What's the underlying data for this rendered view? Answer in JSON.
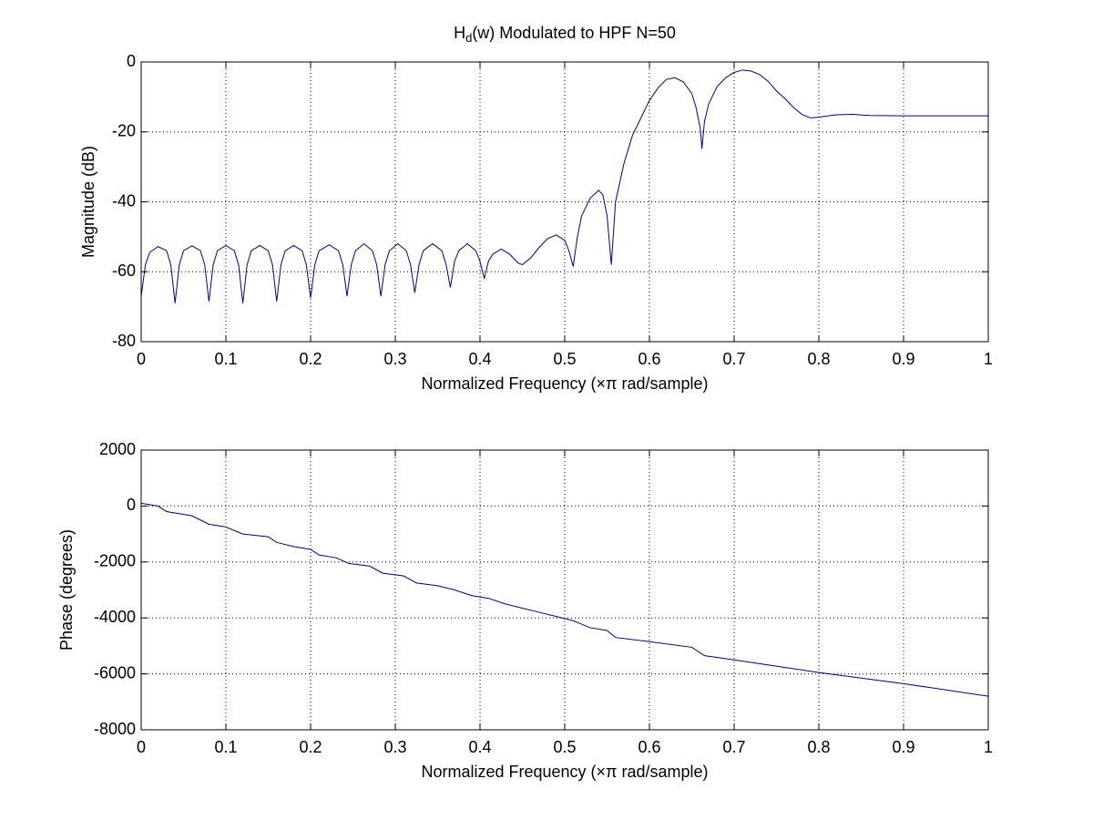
{
  "chart_data": [
    {
      "type": "line",
      "title": "Hd(w) Modulated to HPF N=50",
      "xlabel": "Normalized Frequency  (×π rad/sample)",
      "ylabel": "Magnitude (dB)",
      "x": [
        0,
        0.005,
        0.01,
        0.02,
        0.03,
        0.035,
        0.04,
        0.045,
        0.05,
        0.06,
        0.07,
        0.075,
        0.08,
        0.085,
        0.09,
        0.1,
        0.11,
        0.115,
        0.12,
        0.125,
        0.13,
        0.14,
        0.15,
        0.155,
        0.16,
        0.165,
        0.17,
        0.18,
        0.19,
        0.195,
        0.2,
        0.205,
        0.21,
        0.222,
        0.233,
        0.238,
        0.243,
        0.248,
        0.253,
        0.263,
        0.273,
        0.278,
        0.283,
        0.288,
        0.293,
        0.303,
        0.313,
        0.318,
        0.323,
        0.328,
        0.333,
        0.344,
        0.355,
        0.36,
        0.365,
        0.37,
        0.375,
        0.385,
        0.395,
        0.4,
        0.405,
        0.41,
        0.415,
        0.425,
        0.435,
        0.445,
        0.45,
        0.46,
        0.47,
        0.48,
        0.49,
        0.5,
        0.505,
        0.51,
        0.515,
        0.52,
        0.53,
        0.54,
        0.545,
        0.55,
        0.555,
        0.56,
        0.57,
        0.58,
        0.59,
        0.6,
        0.61,
        0.62,
        0.63,
        0.64,
        0.65,
        0.655,
        0.66,
        0.662,
        0.665,
        0.67,
        0.68,
        0.69,
        0.7,
        0.71,
        0.72,
        0.73,
        0.74,
        0.75,
        0.76,
        0.77,
        0.78,
        0.79,
        0.8,
        0.82,
        0.84,
        0.86,
        0.9,
        1
      ],
      "series": [
        {
          "color": "#00008b",
          "values": [
            -67,
            -58,
            -54.5,
            -52.8,
            -54,
            -58,
            -69,
            -58,
            -54,
            -52.6,
            -54,
            -58,
            -68.5,
            -58,
            -54,
            -52.5,
            -54,
            -58,
            -69,
            -58,
            -54,
            -52.5,
            -54,
            -58,
            -68.5,
            -58,
            -54,
            -52.5,
            -54,
            -58,
            -67.5,
            -58,
            -54,
            -52.3,
            -54,
            -58,
            -67,
            -58,
            -54,
            -52,
            -54,
            -58,
            -67,
            -58,
            -54,
            -52,
            -54,
            -58,
            -66,
            -58,
            -54,
            -52,
            -54,
            -58,
            -64.5,
            -57,
            -54,
            -52,
            -54,
            -57,
            -62,
            -57,
            -55,
            -53.5,
            -55,
            -57.5,
            -58,
            -56,
            -53,
            -50.5,
            -49.5,
            -51,
            -54,
            -58.5,
            -50,
            -44,
            -39,
            -36.7,
            -38,
            -44,
            -58,
            -40,
            -29,
            -21,
            -16,
            -11,
            -7.5,
            -5,
            -4.5,
            -5.7,
            -9,
            -13,
            -19,
            -24.8,
            -17,
            -12,
            -7,
            -4.5,
            -3,
            -2.3,
            -2.6,
            -3.6,
            -5.5,
            -8.3,
            -10.5,
            -13,
            -15,
            -16,
            -15.8,
            -15.1,
            -15,
            -15.3,
            -15.4,
            -15.4
          ]
        }
      ],
      "xlim": [
        0,
        1
      ],
      "xticks": [
        0,
        0.1,
        0.2,
        0.3,
        0.4,
        0.5,
        0.6,
        0.7,
        0.8,
        0.9,
        1
      ],
      "ylim": [
        -80,
        0
      ],
      "yticks": [
        -80,
        -60,
        -40,
        -20,
        0
      ],
      "grid": true
    },
    {
      "type": "line",
      "xlabel": "Normalized Frequency  (×π rad/sample)",
      "ylabel": "Phase (degrees)",
      "x": [
        0,
        0.02,
        0.03,
        0.06,
        0.07,
        0.08,
        0.1,
        0.12,
        0.15,
        0.16,
        0.18,
        0.2,
        0.21,
        0.23,
        0.245,
        0.27,
        0.285,
        0.31,
        0.325,
        0.35,
        0.37,
        0.39,
        0.41,
        0.43,
        0.45,
        0.47,
        0.49,
        0.51,
        0.53,
        0.55,
        0.56,
        0.6,
        0.65,
        0.665,
        0.7,
        0.8,
        0.9,
        1
      ],
      "series": [
        {
          "color": "#00008b",
          "values": [
            100,
            0,
            -200,
            -350,
            -500,
            -650,
            -750,
            -1000,
            -1100,
            -1300,
            -1450,
            -1550,
            -1750,
            -1850,
            -2050,
            -2150,
            -2400,
            -2500,
            -2750,
            -2850,
            -3000,
            -3200,
            -3300,
            -3500,
            -3650,
            -3800,
            -3950,
            -4100,
            -4350,
            -4450,
            -4700,
            -4850,
            -5050,
            -5350,
            -5500,
            -5950,
            -6350,
            -6800
          ]
        }
      ],
      "xlim": [
        0,
        1
      ],
      "xticks": [
        0,
        0.1,
        0.2,
        0.3,
        0.4,
        0.5,
        0.6,
        0.7,
        0.8,
        0.9,
        1
      ],
      "ylim": [
        -8000,
        2000
      ],
      "yticks": [
        -8000,
        -6000,
        -4000,
        -2000,
        0,
        2000
      ],
      "grid": true
    }
  ]
}
